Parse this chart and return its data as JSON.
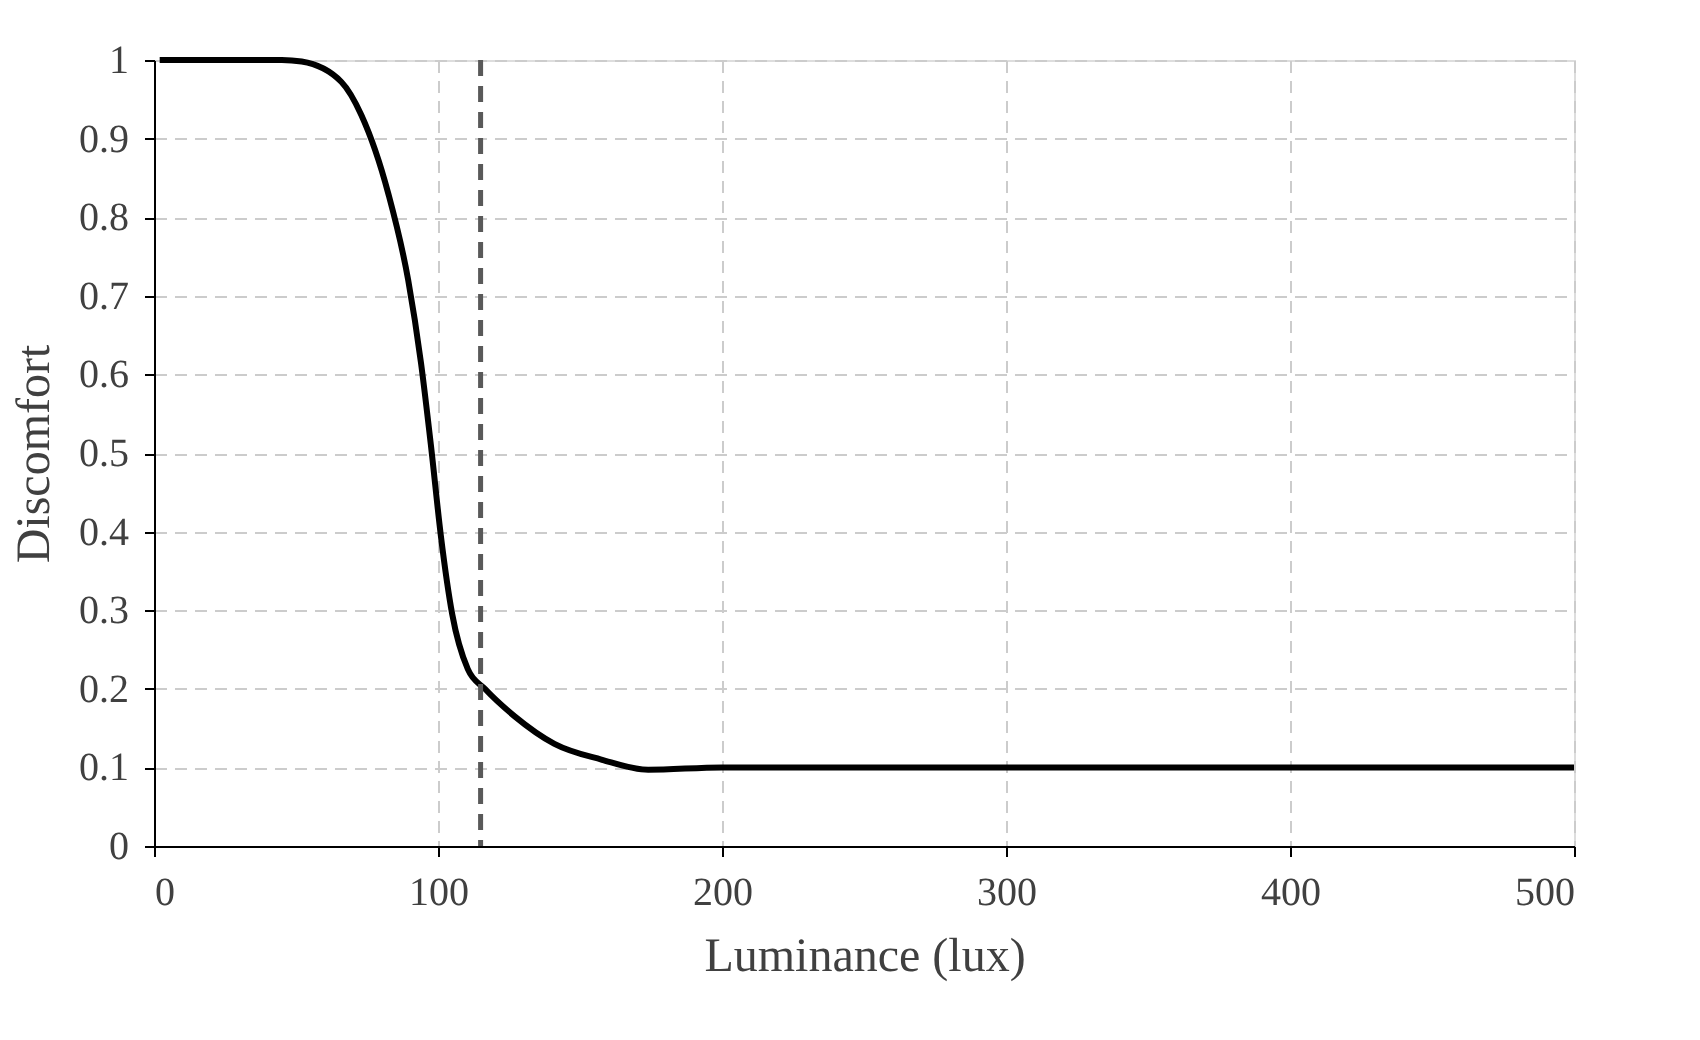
{
  "chart_data": {
    "type": "line",
    "xlabel": "Luminance  (lux)",
    "ylabel": "Discomfort",
    "x": [
      2,
      45,
      52,
      66,
      73,
      82.5,
      89.5,
      94,
      97.5,
      101,
      105,
      110.5,
      116.5,
      127,
      141,
      157.5,
      174,
      200,
      300,
      400,
      500
    ],
    "series": [
      {
        "color": "#000000",
        "values": [
          1,
          1,
          0.998,
          0.972,
          0.93,
          0.83,
          0.72,
          0.615,
          0.51,
          0.395,
          0.295,
          0.225,
          0.2,
          0.165,
          0.13,
          0.11,
          0.097,
          0.1,
          0.1,
          0.1,
          0.1
        ]
      }
    ],
    "xlim": [
      0,
      500
    ],
    "xticks": [
      0,
      100,
      200,
      300,
      400,
      500
    ],
    "ylim": [
      0,
      1
    ],
    "yticks": [
      0,
      0.1,
      0.2,
      0.3,
      0.4,
      0.5,
      0.6,
      0.7,
      0.8,
      0.9,
      1
    ],
    "ref_lines": [
      {
        "axis": "x",
        "value": 115,
        "color": "#595959",
        "line_style": "dashed"
      }
    ],
    "grid": true,
    "marker": "none",
    "line_style": "solid"
  }
}
